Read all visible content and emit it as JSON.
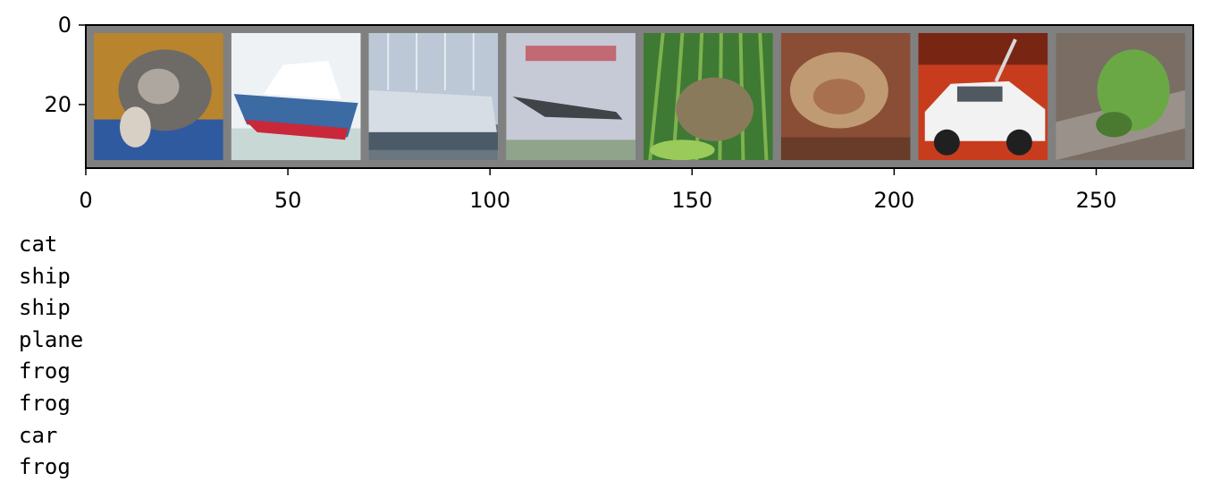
{
  "chart_data": {
    "type": "image-grid",
    "title": "",
    "xlabel": "",
    "ylabel": "",
    "image_size": {
      "width": 274,
      "height": 36
    },
    "tile_size": 32,
    "tile_padding": 2,
    "padding_color": "#808080",
    "xlim": [
      0,
      274
    ],
    "ylim": [
      36,
      0
    ],
    "x_ticks": [
      0,
      50,
      100,
      150,
      200,
      250
    ],
    "y_ticks": [
      0,
      20
    ],
    "x_tick_labels": [
      "0",
      "50",
      "100",
      "150",
      "200",
      "250"
    ],
    "y_tick_labels": [
      "0",
      "20"
    ],
    "tiles": [
      {
        "index": 0,
        "subject": "cat",
        "colors": {
          "bg": "#b8842e",
          "main": "#6e6a66",
          "accent": "#2f5aa0",
          "extra": "#d8d0c4"
        }
      },
      {
        "index": 1,
        "subject": "ship",
        "colors": {
          "bg": "#eef2f4",
          "main": "#3c6aa2",
          "accent": "#c8283a",
          "extra": "#ffffff"
        }
      },
      {
        "index": 2,
        "subject": "ship",
        "colors": {
          "bg": "#bcc8d6",
          "main": "#d6dde4",
          "accent": "#4a5a66",
          "extra": "#6a7680"
        }
      },
      {
        "index": 3,
        "subject": "plane",
        "colors": {
          "bg": "#c6cad6",
          "main": "#c0404a",
          "accent": "#404448",
          "extra": "#6c8a5a"
        }
      },
      {
        "index": 4,
        "subject": "frog",
        "colors": {
          "bg": "#3e7a34",
          "main": "#8a7a5c",
          "accent": "#9acb5a",
          "extra": "#24461e"
        }
      },
      {
        "index": 5,
        "subject": "frog",
        "colors": {
          "bg": "#8a4e36",
          "main": "#c09a72",
          "accent": "#5a3424",
          "extra": "#a8704e"
        }
      },
      {
        "index": 6,
        "subject": "car",
        "colors": {
          "bg": "#c83c1e",
          "main": "#f2f2f2",
          "accent": "#202020",
          "extra": "#e8642e"
        }
      },
      {
        "index": 7,
        "subject": "frog",
        "colors": {
          "bg": "#7a6e64",
          "main": "#6aa846",
          "accent": "#9a928a",
          "extra": "#4a7a30"
        }
      }
    ]
  },
  "output": {
    "labels": [
      "cat",
      "ship",
      "ship",
      "plane",
      "frog",
      "frog",
      "car",
      "frog"
    ]
  }
}
